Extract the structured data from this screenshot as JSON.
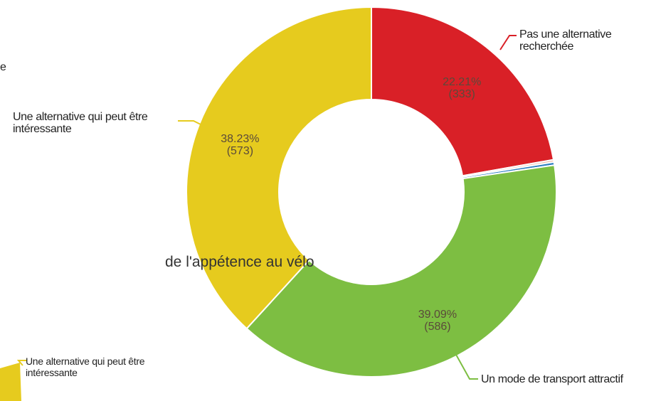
{
  "chart_data": {
    "type": "donut",
    "categories": [
      "Pas une alternative recherchée",
      null,
      null,
      "Un mode de transport attractif",
      "Une alternative qui peut être intéressante"
    ],
    "values": [
      22.21,
      0.2,
      0.27,
      39.09,
      38.23
    ],
    "value_labels": [
      "22.21%",
      null,
      null,
      "39.09%",
      "38.23%"
    ],
    "counts": [
      333,
      null,
      null,
      586,
      573
    ],
    "count_labels": [
      "(333)",
      null,
      null,
      "(586)",
      "(573)"
    ],
    "colors": [
      "#d92027",
      "#f0b9a6",
      "#2f7fc1",
      "#7dbe42",
      "#e6cb1e"
    ],
    "fragments": {
      "top_left": "e",
      "subtitle": "de l'appétence au vélo",
      "bottom_left": "Une alternative qui peut être intéressante"
    }
  }
}
